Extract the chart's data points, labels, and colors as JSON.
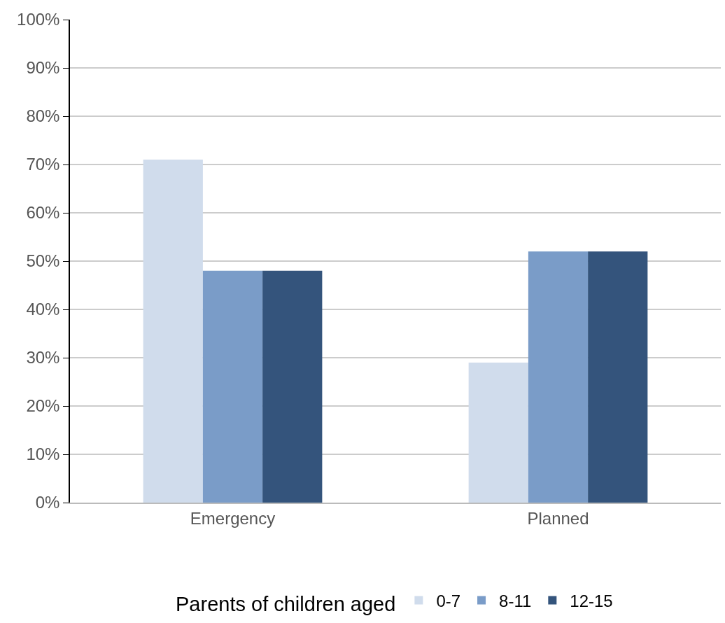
{
  "chart_data": {
    "type": "bar",
    "categories": [
      "Emergency",
      "Planned"
    ],
    "legend_title": "Parents of children aged",
    "series": [
      {
        "name": "0-7",
        "color": "#d0dcec",
        "values": [
          71,
          29
        ]
      },
      {
        "name": "8-11",
        "color": "#7a9cc8",
        "values": [
          48,
          52
        ]
      },
      {
        "name": "12-15",
        "color": "#34547c",
        "values": [
          48,
          52
        ]
      }
    ],
    "ylim": [
      0,
      100
    ],
    "yticks": [
      {
        "value": 0,
        "label": "0%"
      },
      {
        "value": 10,
        "label": "10%"
      },
      {
        "value": 20,
        "label": "20%"
      },
      {
        "value": 30,
        "label": "30%"
      },
      {
        "value": 40,
        "label": "40%"
      },
      {
        "value": 50,
        "label": "50%"
      },
      {
        "value": 60,
        "label": "60%"
      },
      {
        "value": 70,
        "label": "70%"
      },
      {
        "value": 80,
        "label": "80%"
      },
      {
        "value": 90,
        "label": "90%"
      },
      {
        "value": 100,
        "label": "100%"
      }
    ],
    "grid": "y",
    "legend": "bottom"
  }
}
